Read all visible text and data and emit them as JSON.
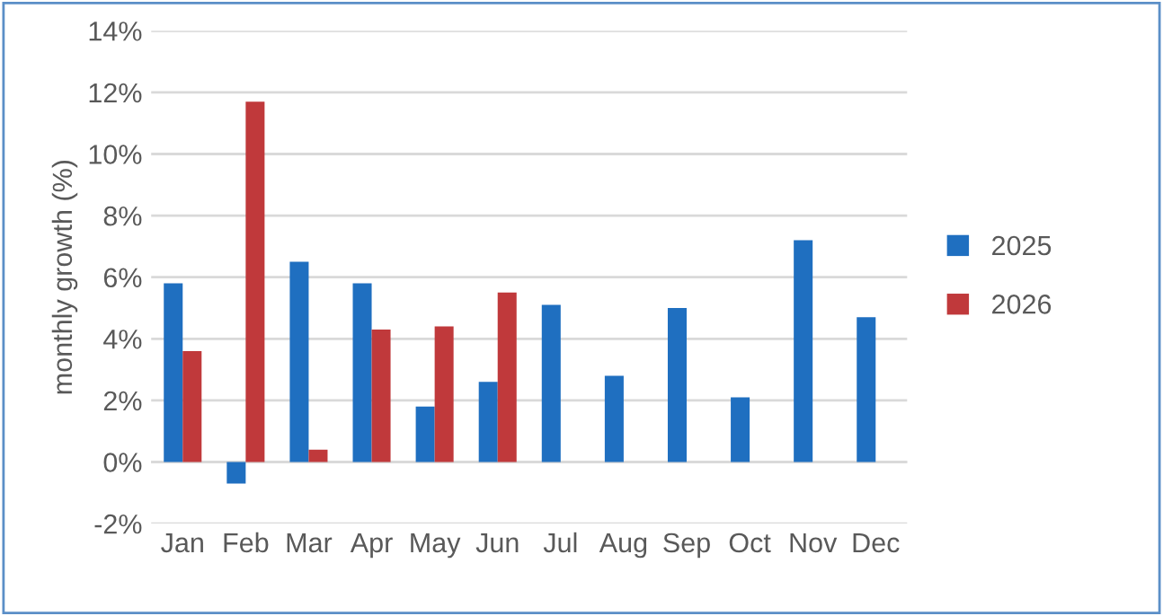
{
  "chart_data": {
    "type": "bar",
    "ylabel": "monthly growth (%)",
    "categories": [
      "Jan",
      "Feb",
      "Mar",
      "Apr",
      "May",
      "Jun",
      "Jul",
      "Aug",
      "Sep",
      "Oct",
      "Nov",
      "Dec"
    ],
    "series": [
      {
        "name": "2025",
        "color": "#1f6fc0",
        "values": [
          5.8,
          -0.7,
          6.5,
          5.8,
          1.8,
          2.6,
          5.1,
          2.8,
          5.0,
          2.1,
          7.2,
          4.7
        ]
      },
      {
        "name": "2026",
        "color": "#c0393b",
        "values": [
          3.6,
          11.7,
          0.4,
          4.3,
          4.4,
          5.5,
          null,
          null,
          null,
          null,
          null,
          null
        ]
      }
    ],
    "ylim": [
      -2,
      14
    ],
    "yticks": [
      {
        "value": -2,
        "label": "-2%"
      },
      {
        "value": 0,
        "label": "0%"
      },
      {
        "value": 2,
        "label": "2%"
      },
      {
        "value": 4,
        "label": "4%"
      },
      {
        "value": 6,
        "label": "6%"
      },
      {
        "value": 8,
        "label": "8%"
      },
      {
        "value": 10,
        "label": "10%"
      },
      {
        "value": 12,
        "label": "12%"
      },
      {
        "value": 14,
        "label": "14%"
      }
    ],
    "grid": "y",
    "legend": "right"
  }
}
